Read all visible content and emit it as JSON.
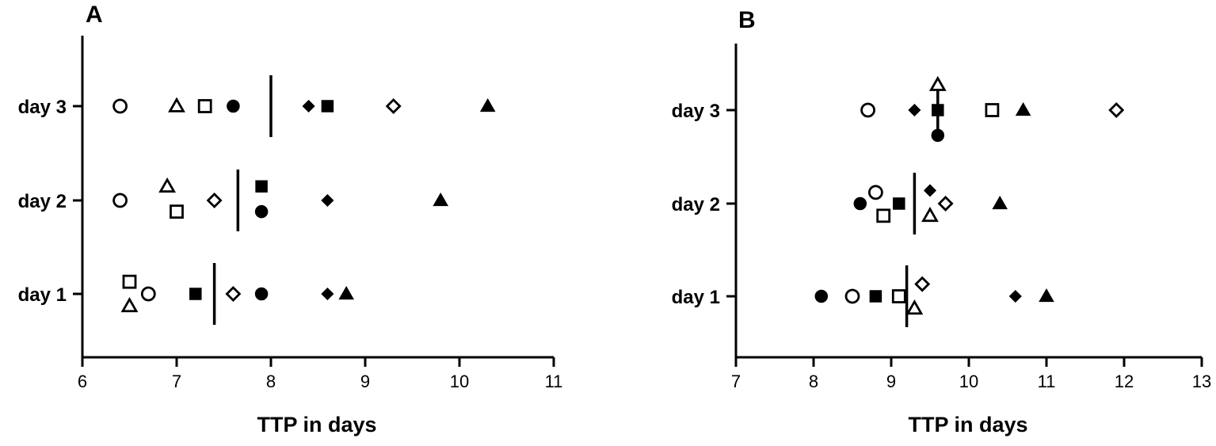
{
  "chart_data": [
    {
      "type": "scatter",
      "panel_label": "A",
      "xlabel": "TTP in days",
      "xlim": [
        6,
        11
      ],
      "xticks": [
        "6",
        "7",
        "8",
        "9",
        "10",
        "11"
      ],
      "categories": [
        "day 1",
        "day 2",
        "day 3"
      ],
      "points": [
        {
          "category": "day 3",
          "marker": "circle-open",
          "x": 6.4,
          "offset": 0
        },
        {
          "category": "day 3",
          "marker": "triangle-open",
          "x": 7.0,
          "offset": 0
        },
        {
          "category": "day 3",
          "marker": "square-open",
          "x": 7.3,
          "offset": 0
        },
        {
          "category": "day 3",
          "marker": "circle-filled",
          "x": 7.6,
          "offset": 0
        },
        {
          "category": "day 3",
          "marker": "diamond-filled",
          "x": 8.4,
          "offset": 0
        },
        {
          "category": "day 3",
          "marker": "square-filled",
          "x": 8.6,
          "offset": 0
        },
        {
          "category": "day 3",
          "marker": "diamond-open",
          "x": 9.3,
          "offset": 0
        },
        {
          "category": "day 3",
          "marker": "triangle-filled",
          "x": 10.3,
          "offset": 0
        },
        {
          "category": "day 2",
          "marker": "circle-open",
          "x": 6.4,
          "offset": 0
        },
        {
          "category": "day 2",
          "marker": "triangle-open",
          "x": 6.9,
          "offset": 0.15
        },
        {
          "category": "day 2",
          "marker": "square-open",
          "x": 7.0,
          "offset": -0.12
        },
        {
          "category": "day 2",
          "marker": "diamond-open",
          "x": 7.4,
          "offset": 0
        },
        {
          "category": "day 2",
          "marker": "square-filled",
          "x": 7.9,
          "offset": 0.15
        },
        {
          "category": "day 2",
          "marker": "circle-filled",
          "x": 7.9,
          "offset": -0.12
        },
        {
          "category": "day 2",
          "marker": "diamond-filled",
          "x": 8.6,
          "offset": 0
        },
        {
          "category": "day 2",
          "marker": "triangle-filled",
          "x": 9.8,
          "offset": 0
        },
        {
          "category": "day 1",
          "marker": "square-open",
          "x": 6.5,
          "offset": 0.13
        },
        {
          "category": "day 1",
          "marker": "triangle-open",
          "x": 6.5,
          "offset": -0.13
        },
        {
          "category": "day 1",
          "marker": "circle-open",
          "x": 6.7,
          "offset": 0
        },
        {
          "category": "day 1",
          "marker": "square-filled",
          "x": 7.2,
          "offset": 0
        },
        {
          "category": "day 1",
          "marker": "diamond-open",
          "x": 7.6,
          "offset": 0
        },
        {
          "category": "day 1",
          "marker": "circle-filled",
          "x": 7.9,
          "offset": 0
        },
        {
          "category": "day 1",
          "marker": "diamond-filled",
          "x": 8.6,
          "offset": 0
        },
        {
          "category": "day 1",
          "marker": "triangle-filled",
          "x": 8.8,
          "offset": 0
        }
      ],
      "medians": [
        {
          "category": "day 1",
          "x": 7.4
        },
        {
          "category": "day 2",
          "x": 7.65
        },
        {
          "category": "day 3",
          "x": 8.0
        }
      ]
    },
    {
      "type": "scatter",
      "panel_label": "B",
      "xlabel": "TTP in days",
      "xlim": [
        7,
        13
      ],
      "xticks": [
        "7",
        "8",
        "9",
        "10",
        "11",
        "12",
        "13"
      ],
      "categories": [
        "day 1",
        "day 2",
        "day 3"
      ],
      "points": [
        {
          "category": "day 3",
          "marker": "circle-open",
          "x": 8.7,
          "offset": 0
        },
        {
          "category": "day 3",
          "marker": "diamond-filled",
          "x": 9.3,
          "offset": 0
        },
        {
          "category": "day 3",
          "marker": "square-filled",
          "x": 9.6,
          "offset": 0
        },
        {
          "category": "day 3",
          "marker": "triangle-open",
          "x": 9.6,
          "offset": 0.27
        },
        {
          "category": "day 3",
          "marker": "circle-filled",
          "x": 9.6,
          "offset": -0.27
        },
        {
          "category": "day 3",
          "marker": "square-open",
          "x": 10.3,
          "offset": 0
        },
        {
          "category": "day 3",
          "marker": "triangle-filled",
          "x": 10.7,
          "offset": 0
        },
        {
          "category": "day 3",
          "marker": "diamond-open",
          "x": 11.9,
          "offset": 0
        },
        {
          "category": "day 2",
          "marker": "circle-filled",
          "x": 8.6,
          "offset": 0
        },
        {
          "category": "day 2",
          "marker": "circle-open",
          "x": 8.8,
          "offset": 0.12
        },
        {
          "category": "day 2",
          "marker": "square-open",
          "x": 8.9,
          "offset": -0.13
        },
        {
          "category": "day 2",
          "marker": "square-filled",
          "x": 9.1,
          "offset": 0
        },
        {
          "category": "day 2",
          "marker": "diamond-filled",
          "x": 9.5,
          "offset": 0.14
        },
        {
          "category": "day 2",
          "marker": "triangle-open",
          "x": 9.5,
          "offset": -0.13
        },
        {
          "category": "day 2",
          "marker": "diamond-open",
          "x": 9.7,
          "offset": 0
        },
        {
          "category": "day 2",
          "marker": "triangle-filled",
          "x": 10.4,
          "offset": 0
        },
        {
          "category": "day 1",
          "marker": "circle-filled",
          "x": 8.1,
          "offset": 0
        },
        {
          "category": "day 1",
          "marker": "circle-open",
          "x": 8.5,
          "offset": 0
        },
        {
          "category": "day 1",
          "marker": "square-filled",
          "x": 8.8,
          "offset": 0
        },
        {
          "category": "day 1",
          "marker": "square-open",
          "x": 9.1,
          "offset": 0
        },
        {
          "category": "day 1",
          "marker": "diamond-open",
          "x": 9.4,
          "offset": 0.13
        },
        {
          "category": "day 1",
          "marker": "triangle-open",
          "x": 9.3,
          "offset": -0.13
        },
        {
          "category": "day 1",
          "marker": "diamond-filled",
          "x": 10.6,
          "offset": 0
        },
        {
          "category": "day 1",
          "marker": "triangle-filled",
          "x": 11.0,
          "offset": 0
        }
      ],
      "medians": [
        {
          "category": "day 1",
          "x": 9.2
        },
        {
          "category": "day 2",
          "x": 9.3
        },
        {
          "category": "day 3",
          "x": 9.6
        }
      ]
    }
  ]
}
